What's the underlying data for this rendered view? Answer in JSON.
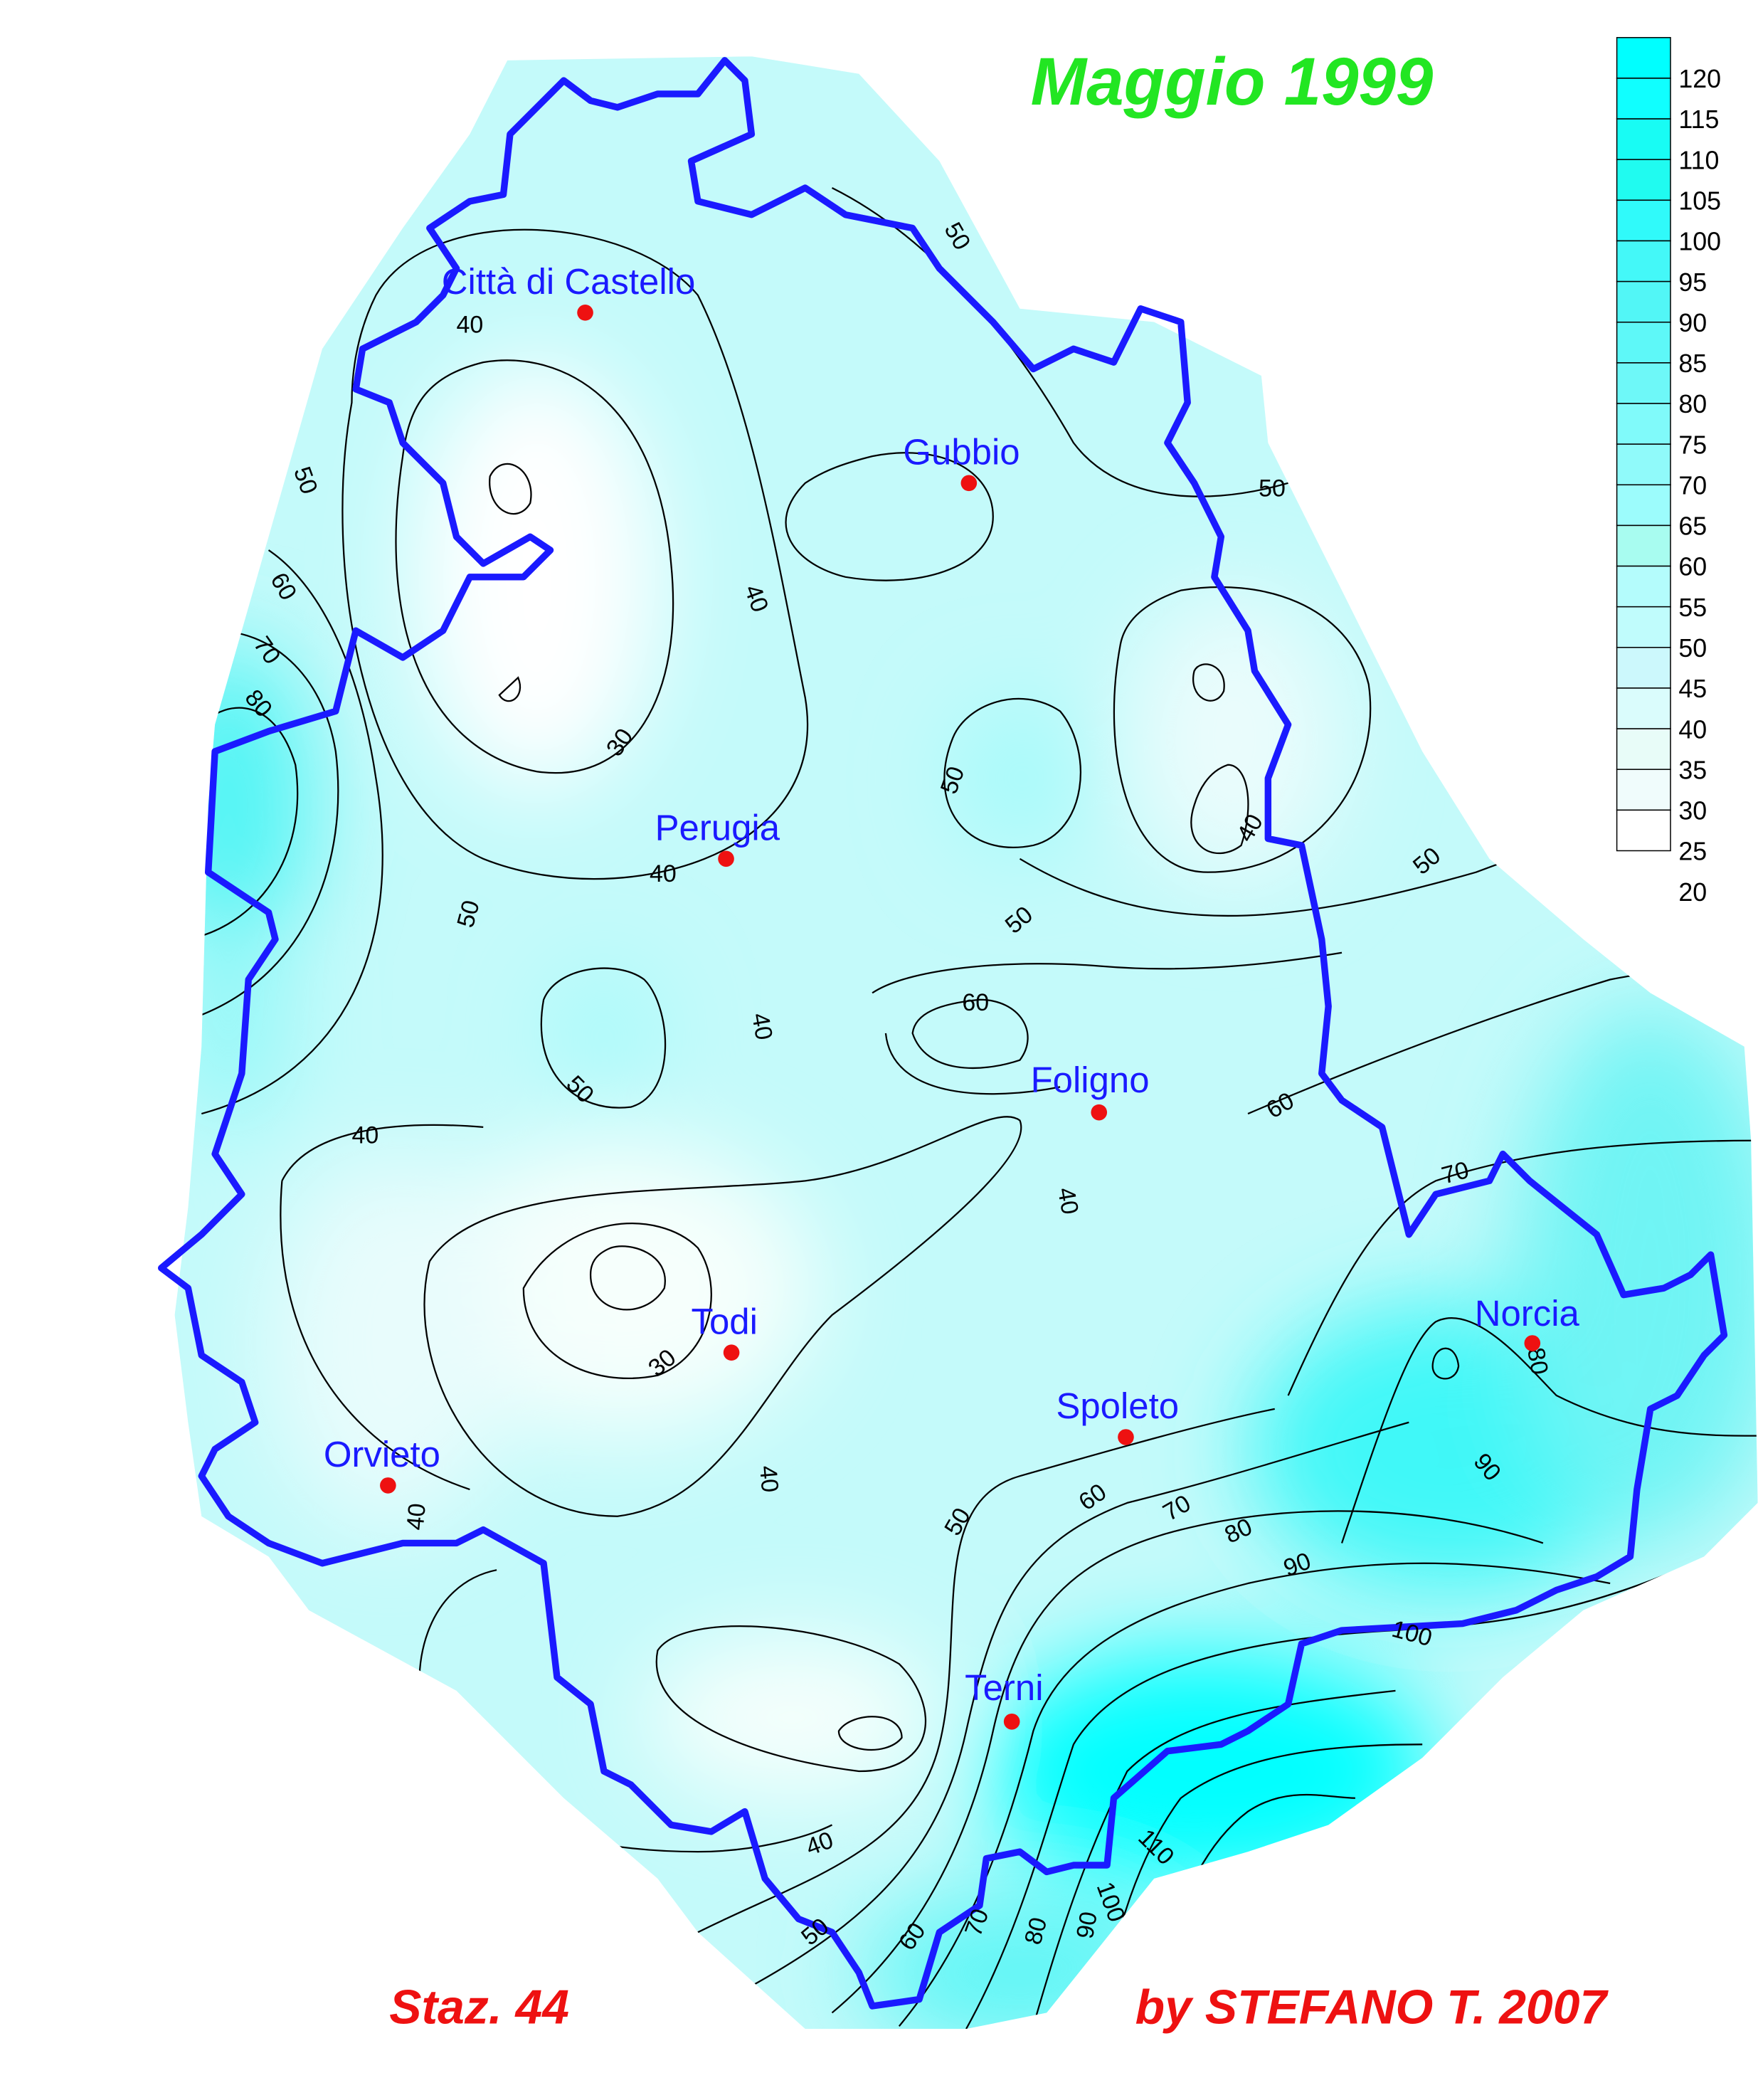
{
  "title": "Maggio 1999",
  "footer": {
    "station_count": "Staz. 44",
    "credit": "by STEFANO T. 2007"
  },
  "legend": {
    "values": [
      "120",
      "115",
      "110",
      "105",
      "100",
      "95",
      "90",
      "85",
      "80",
      "75",
      "70",
      "65",
      "60",
      "55",
      "50",
      "45",
      "40",
      "35",
      "30",
      "25",
      "20"
    ],
    "colors": [
      "#00ffff",
      "#10ffff",
      "#18fcf4",
      "#20fbf0",
      "#30fafa",
      "#44f8f8",
      "#52f6f6",
      "#5ef8f8",
      "#6ef8f8",
      "#80fafa",
      "#90fafa",
      "#9cfcfc",
      "#a8fcf0",
      "#b4fcfc",
      "#c0fcfc",
      "#ccf8fc",
      "#dafcfc",
      "#e8fcf8",
      "#f0fcfc",
      "#ffffff"
    ]
  },
  "colors": {
    "border": "#1a1aff",
    "city_dot": "#ee1111",
    "city_label": "#1a1aff",
    "title": "#22e622",
    "footer": "#ee1111"
  },
  "cities": [
    {
      "name": "Città di Castello"
    },
    {
      "name": "Gubbio"
    },
    {
      "name": "Perugia"
    },
    {
      "name": "Foligno"
    },
    {
      "name": "Norcia"
    },
    {
      "name": "Todi"
    },
    {
      "name": "Spoleto"
    },
    {
      "name": "Orvieto"
    },
    {
      "name": "Terni"
    }
  ],
  "contour_labels": [
    "40",
    "50",
    "50",
    "50",
    "60",
    "70",
    "80",
    "40",
    "30",
    "40",
    "50",
    "50",
    "40",
    "50",
    "50",
    "60",
    "40",
    "40",
    "30",
    "40",
    "50",
    "60",
    "70",
    "80",
    "90",
    "100",
    "110",
    "40",
    "40",
    "50",
    "60",
    "70",
    "80",
    "90",
    "100",
    "80",
    "90",
    "50",
    "60",
    "40",
    "70"
  ]
}
